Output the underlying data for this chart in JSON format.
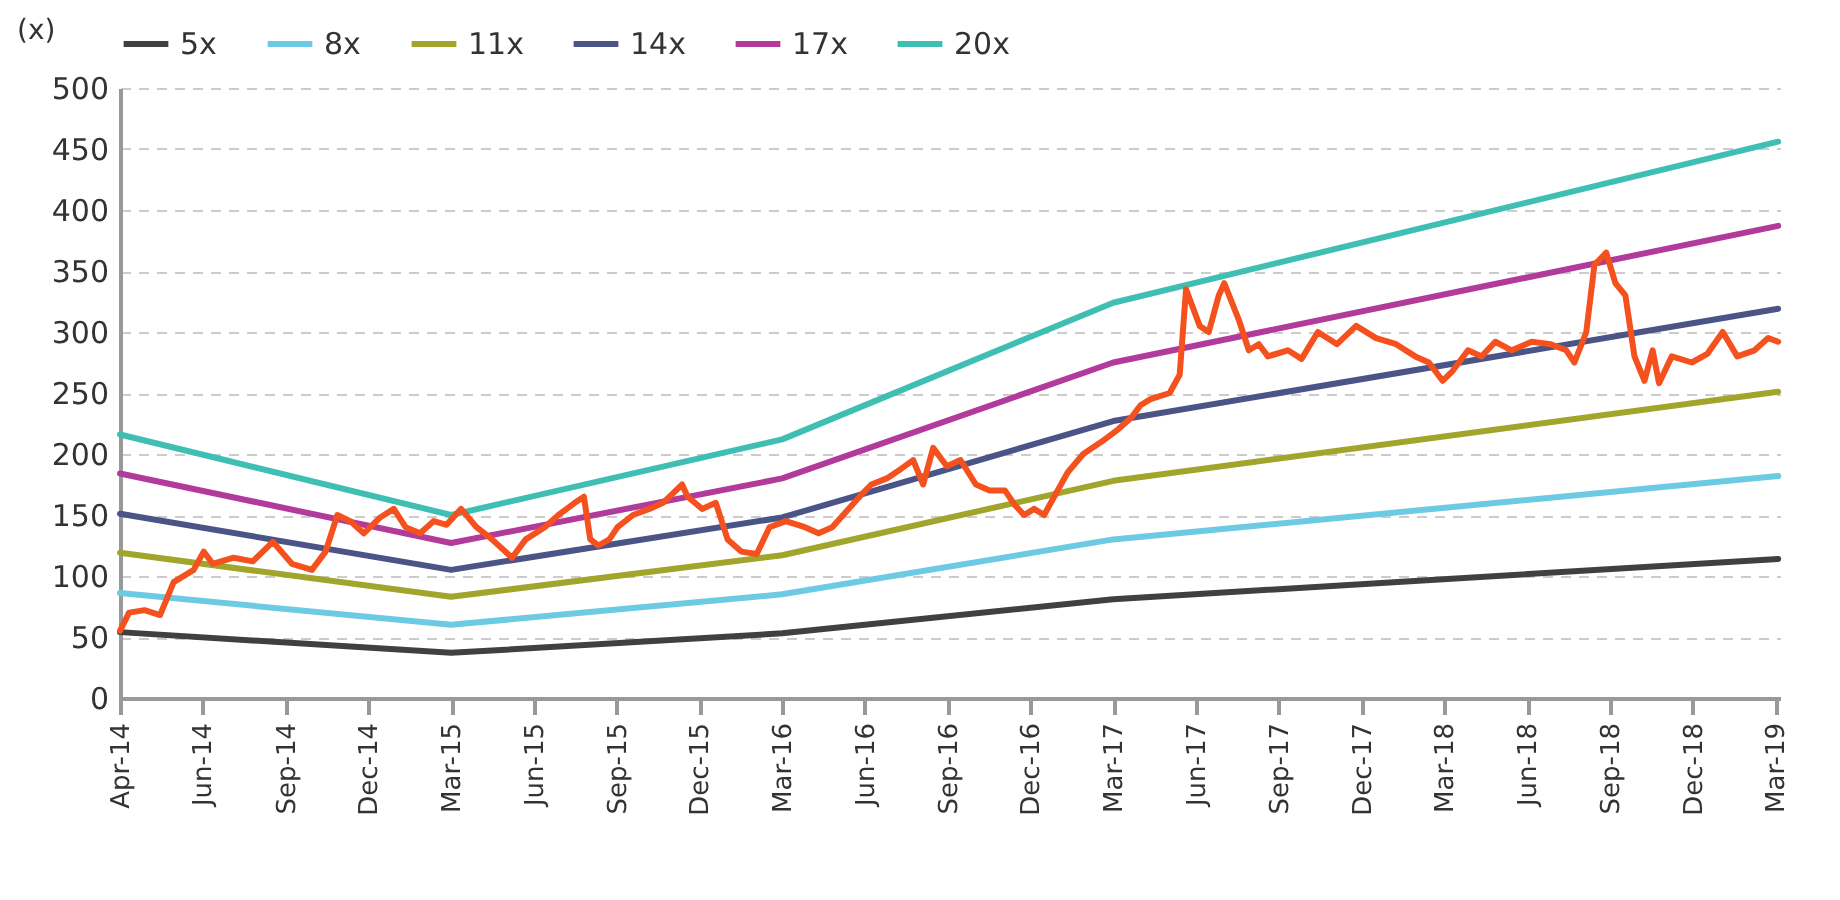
{
  "chart_data": {
    "type": "line",
    "ylabel": "(x)",
    "xlim": [
      "2014-04-01",
      "2019-03-31"
    ],
    "xticks": [
      {
        "value": "2014-04-01",
        "label": "Apr-14"
      },
      {
        "value": "2014-06-30",
        "label": "Jun-14"
      },
      {
        "value": "2014-09-30",
        "label": "Sep-14"
      },
      {
        "value": "2014-12-30",
        "label": "Dec-14"
      },
      {
        "value": "2015-03-31",
        "label": "Mar-15"
      },
      {
        "value": "2015-06-30",
        "label": "Jun-15"
      },
      {
        "value": "2015-09-29",
        "label": "Sep-15"
      },
      {
        "value": "2015-12-29",
        "label": "Dec-15"
      },
      {
        "value": "2016-03-29",
        "label": "Mar-16"
      },
      {
        "value": "2016-06-28",
        "label": "Jun-16"
      },
      {
        "value": "2016-09-27",
        "label": "Sep-16"
      },
      {
        "value": "2016-12-27",
        "label": "Dec-16"
      },
      {
        "value": "2017-03-28",
        "label": "Mar-17"
      },
      {
        "value": "2017-06-27",
        "label": "Jun-17"
      },
      {
        "value": "2017-09-26",
        "label": "Sep-17"
      },
      {
        "value": "2017-12-26",
        "label": "Dec-17"
      },
      {
        "value": "2018-03-27",
        "label": "Mar-18"
      },
      {
        "value": "2018-06-26",
        "label": "Jun-18"
      },
      {
        "value": "2018-09-25",
        "label": "Sep-18"
      },
      {
        "value": "2018-12-25",
        "label": "Dec-18"
      },
      {
        "value": "2019-03-26",
        "label": "Mar-19"
      }
    ],
    "ylim": [
      0,
      500
    ],
    "yticks": [
      0,
      50,
      100,
      150,
      200,
      250,
      300,
      350,
      400,
      450,
      500
    ],
    "grid": "y",
    "legend": "top",
    "marker": "none",
    "line_style": "solid",
    "series": [
      {
        "color": "#f4511e",
        "x": [
          "2014-04-01",
          "2014-04-11",
          "2014-04-28",
          "2014-05-15",
          "2014-05-30",
          "2014-06-21",
          "2014-07-02",
          "2014-07-12",
          "2014-08-04",
          "2014-08-25",
          "2014-09-16",
          "2014-10-07",
          "2014-10-29",
          "2014-11-13",
          "2014-11-26",
          "2014-12-10",
          "2014-12-25",
          "2015-01-12",
          "2015-01-27",
          "2015-02-09",
          "2015-02-25",
          "2015-03-12",
          "2015-03-26",
          "2015-04-11",
          "2015-04-28",
          "2015-05-15",
          "2015-06-06",
          "2015-06-21",
          "2015-07-12",
          "2015-07-27",
          "2015-08-14",
          "2015-08-24",
          "2015-08-31",
          "2015-09-09",
          "2015-09-21",
          "2015-09-30",
          "2015-10-17",
          "2015-11-04",
          "2015-11-19",
          "2015-12-10",
          "2015-12-16",
          "2016-01-01",
          "2016-01-16",
          "2016-01-29",
          "2016-02-13",
          "2016-03-01",
          "2016-03-15",
          "2016-04-02",
          "2016-04-23",
          "2016-05-08",
          "2016-05-23",
          "2016-06-10",
          "2016-06-22",
          "2016-07-05",
          "2016-07-22",
          "2016-08-07",
          "2016-08-20",
          "2016-08-31",
          "2016-09-11",
          "2016-09-26",
          "2016-10-11",
          "2016-10-28",
          "2016-11-12",
          "2016-11-29",
          "2016-12-10",
          "2016-12-20",
          "2016-12-31",
          "2017-01-11",
          "2017-01-22",
          "2017-02-06",
          "2017-02-23",
          "2017-03-15",
          "2017-04-02",
          "2017-04-17",
          "2017-04-27",
          "2017-05-08",
          "2017-05-29",
          "2017-06-09",
          "2017-06-16",
          "2017-07-01",
          "2017-07-11",
          "2017-07-22",
          "2017-07-28",
          "2017-08-13",
          "2017-08-24",
          "2017-09-04",
          "2017-09-14",
          "2017-10-06",
          "2017-10-21",
          "2017-11-08",
          "2017-11-29",
          "2017-12-20",
          "2018-01-11",
          "2018-02-02",
          "2018-02-23",
          "2018-03-10",
          "2018-03-25",
          "2018-04-05",
          "2018-04-22",
          "2018-05-07",
          "2018-05-22",
          "2018-06-09",
          "2018-07-01",
          "2018-07-22",
          "2018-08-08",
          "2018-08-17",
          "2018-08-30",
          "2018-09-08",
          "2018-09-21",
          "2018-10-01",
          "2018-10-12",
          "2018-10-22",
          "2018-11-02",
          "2018-11-11",
          "2018-11-18",
          "2018-12-02",
          "2018-12-24",
          "2019-01-10",
          "2019-01-27",
          "2019-02-12",
          "2019-03-03",
          "2019-03-18",
          "2019-03-29"
        ],
        "values": [
          55,
          70,
          72,
          68,
          95,
          105,
          120,
          110,
          115,
          112,
          128,
          110,
          105,
          120,
          150,
          145,
          135,
          148,
          155,
          140,
          135,
          145,
          142,
          155,
          140,
          130,
          115,
          130,
          140,
          150,
          160,
          165,
          130,
          125,
          130,
          140,
          150,
          155,
          160,
          175,
          165,
          155,
          160,
          130,
          120,
          118,
          140,
          145,
          140,
          135,
          140,
          155,
          165,
          175,
          180,
          188,
          195,
          175,
          205,
          190,
          195,
          175,
          170,
          170,
          158,
          150,
          155,
          150,
          165,
          185,
          200,
          210,
          220,
          230,
          240,
          245,
          250,
          265,
          335,
          305,
          300,
          330,
          340,
          310,
          285,
          290,
          280,
          285,
          278,
          300,
          290,
          305,
          295,
          290,
          280,
          275,
          260,
          268,
          285,
          280,
          292,
          285,
          292,
          290,
          285,
          275,
          300,
          355,
          365,
          340,
          330,
          280,
          260,
          285,
          258,
          280,
          275,
          282,
          300,
          280,
          285,
          295,
          292
        ]
      },
      {
        "name": "5x",
        "color": "#404040",
        "x": [
          "2014-04-01",
          "2015-03-31",
          "2016-03-29",
          "2017-03-28",
          "2019-03-29"
        ],
        "values": [
          54,
          37,
          53,
          81,
          114
        ]
      },
      {
        "name": "8x",
        "color": "#6ccbe3",
        "x": [
          "2014-04-01",
          "2015-03-31",
          "2016-03-29",
          "2017-03-28",
          "2019-03-29"
        ],
        "values": [
          86,
          60,
          85,
          130,
          182
        ]
      },
      {
        "name": "11x",
        "color": "#a2a52c",
        "x": [
          "2014-04-01",
          "2015-03-31",
          "2016-03-29",
          "2017-03-28",
          "2019-03-29"
        ],
        "values": [
          119,
          83,
          117,
          178,
          251
        ]
      },
      {
        "name": "14x",
        "color": "#4a5487",
        "x": [
          "2014-04-01",
          "2015-03-31",
          "2016-03-29",
          "2017-03-28",
          "2019-03-29"
        ],
        "values": [
          151,
          105,
          148,
          227,
          319
        ]
      },
      {
        "name": "17x",
        "color": "#b23a9a",
        "x": [
          "2014-04-01",
          "2015-03-31",
          "2016-03-29",
          "2017-03-28",
          "2019-03-29"
        ],
        "values": [
          184,
          127,
          180,
          275,
          387
        ]
      },
      {
        "name": "20x",
        "color": "#3fbfb3",
        "x": [
          "2014-04-01",
          "2015-03-31",
          "2016-03-29",
          "2017-03-28",
          "2019-03-29"
        ],
        "values": [
          216,
          150,
          212,
          324,
          456
        ]
      }
    ]
  }
}
